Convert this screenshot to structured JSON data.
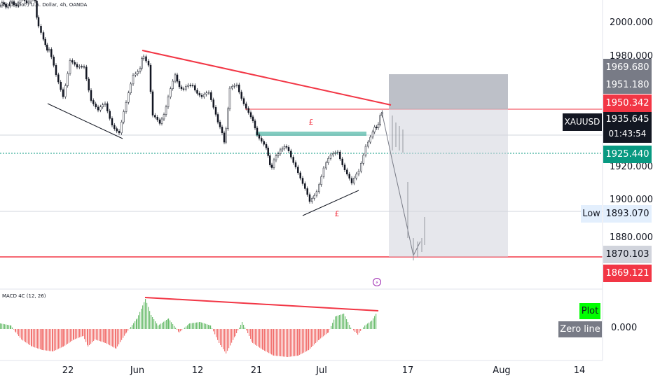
{
  "header": {
    "symbol_desc": "Gold Spot / U.S. Dollar, 4h, OANDA",
    "macd_label": "MACD 4C (12, 26)"
  },
  "price_axis": {
    "ticks": [
      "2000.000",
      "1980.000",
      "1920.000",
      "1900.000",
      "1880.000"
    ]
  },
  "price_labels": {
    "l1969": "1969.680",
    "l1951": "1951.180",
    "l1950": "1950.342",
    "symbol": "XAUUSD",
    "current": "1935.645",
    "countdown": "01:43:54",
    "l1925": "1925.440",
    "low_tag": "Low",
    "low_value": "1893.070",
    "l1870": "1870.103",
    "l1869": "1869.121"
  },
  "macd_panel": {
    "plot_label": "Plot",
    "zero_line_label": "Zero line",
    "zero_value": "0.000"
  },
  "time_axis": {
    "ticks": [
      "22",
      "Jun",
      "12",
      "21",
      "Jul",
      "17",
      "Aug",
      "14"
    ]
  },
  "annotations": {
    "pound_top": "£",
    "pound_bottom": "£"
  },
  "colors": {
    "up": "#26a69a",
    "down": "#ef5350",
    "red_line": "#f23645",
    "green_box": "#089981",
    "macd_up": "#4caf50",
    "macd_down": "#ef5350",
    "plot_bg": "#00ff00",
    "zero_bg": "#787b86"
  }
}
